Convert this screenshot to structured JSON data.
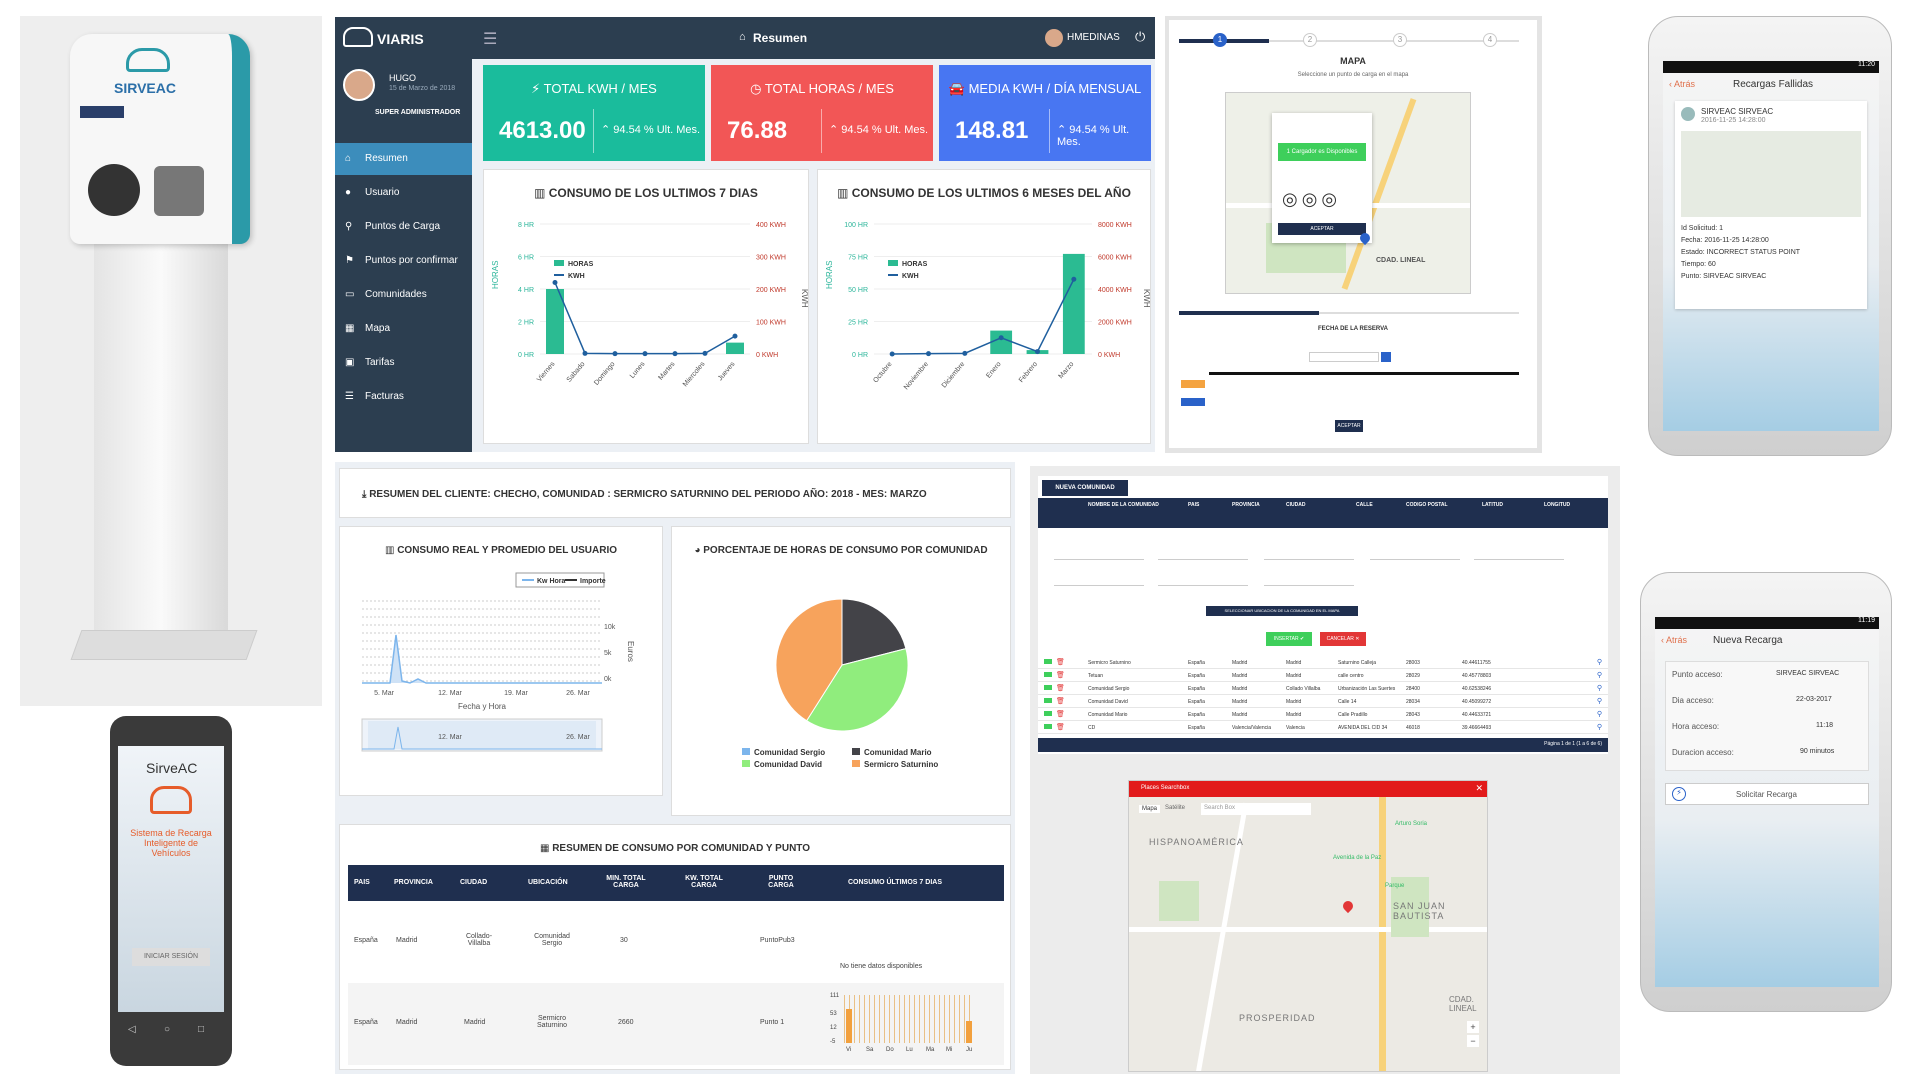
{
  "dashboard": {
    "brand": "VIARIS",
    "header_title": "Resumen",
    "user_menu": "HMEDINAS",
    "profile": {
      "name": "HUGO",
      "date": "15 de Marzo de 2018",
      "role": "SUPER ADMINISTRADOR"
    },
    "nav": [
      {
        "label": "Resumen"
      },
      {
        "label": "Usuario"
      },
      {
        "label": "Puntos de Carga"
      },
      {
        "label": "Puntos por confirmar"
      },
      {
        "label": "Comunidades"
      },
      {
        "label": "Mapa"
      },
      {
        "label": "Tarifas"
      },
      {
        "label": "Facturas"
      }
    ],
    "kpis": [
      {
        "title": "TOTAL KWH / MES",
        "value": "4613.00",
        "change": "94.54 % Ult. Mes.",
        "color": "#1abc9c"
      },
      {
        "title": "TOTAL HORAS / MES",
        "value": "76.88",
        "change": "94.54 % Ult. Mes.",
        "color": "#f25656"
      },
      {
        "title": "MEDIA KWH / DÍA MENSUAL",
        "value": "148.81",
        "change": "94.54 % Ult. Mes.",
        "color": "#4876f2"
      }
    ],
    "chart7_title": "CONSUMO DE LOS ULTIMOS 7 DIAS",
    "chart6_title": "CONSUMO DE LOS ULTIMOS 6 MESES DEL AÑO"
  },
  "chart_data": [
    {
      "type": "bar",
      "title": "CONSUMO DE LOS ULTIMOS 7 DIAS",
      "categories": [
        "Viernes",
        "Sabado",
        "Domingo",
        "Lunes",
        "Martes",
        "Miercoles",
        "Jueves"
      ],
      "series": [
        {
          "name": "HORAS",
          "values": [
            4,
            0,
            0,
            0,
            0,
            0,
            0.7
          ]
        },
        {
          "name": "KWH",
          "values": [
            220,
            2,
            1,
            1,
            1,
            2,
            55
          ]
        }
      ],
      "ylabel": "HORAS",
      "y2label": "KWH",
      "ylim": [
        0,
        8
      ],
      "y2lim": [
        0,
        400
      ],
      "yticks": [
        "0 HR",
        "2 HR",
        "4 HR",
        "6 HR",
        "8 HR"
      ],
      "y2ticks": [
        "0 KWH",
        "100 KWH",
        "200 KWH",
        "300 KWH",
        "400 KWH"
      ]
    },
    {
      "type": "bar",
      "title": "CONSUMO DE LOS ULTIMOS 6 MESES DEL AÑO",
      "categories": [
        "Octubre",
        "Noviembre",
        "Diciembre",
        "Enero",
        "Febrero",
        "Marzo"
      ],
      "series": [
        {
          "name": "HORAS",
          "values": [
            0,
            0,
            0,
            18,
            3,
            77
          ]
        },
        {
          "name": "KWH",
          "values": [
            0,
            20,
            40,
            1000,
            150,
            4600
          ]
        }
      ],
      "ylabel": "HORAS",
      "y2label": "KWH",
      "ylim": [
        0,
        100
      ],
      "y2lim": [
        0,
        8000
      ],
      "yticks": [
        "0 HR",
        "25 HR",
        "50 HR",
        "75 HR",
        "100 HR"
      ],
      "y2ticks": [
        "0 KWH",
        "2000 KWH",
        "4000 KWH",
        "6000 KWH",
        "8000 KWH"
      ]
    },
    {
      "type": "pie",
      "title": "PORCENTAJE DE HORAS DE CONSUMO POR COMUNIDAD",
      "categories": [
        "Comunidad Sergio",
        "Comunidad Mario",
        "Comunidad David",
        "Sermicro Saturnino"
      ],
      "values": [
        0,
        21,
        38,
        41
      ],
      "colors": [
        "#7cb5ec",
        "#434348",
        "#90ed7d",
        "#f7a35c"
      ]
    },
    {
      "type": "line",
      "title": "CONSUMO REAL Y PROMEDIO DEL USUARIO",
      "series": [
        {
          "name": "Kw Hora"
        },
        {
          "name": "Importe"
        }
      ],
      "xticks": [
        "5. Mar",
        "12. Mar",
        "19. Mar",
        "26. Mar"
      ],
      "yticks": [
        "10k",
        "5k",
        "0k"
      ],
      "xlabel": "Fecha y Hora",
      "ylabel": "Euros"
    }
  ],
  "mapa": {
    "title": "MAPA",
    "subtitle": "Seleccione un punto de carga en el mapa",
    "steps": [
      "1",
      "2",
      "3",
      "4"
    ],
    "info": "1 Cargador es Disponibles",
    "accept": "ACEPTAR",
    "fecha_title": "FECHA DE LA RESERVA",
    "reserve_btn": "ACEPTAR"
  },
  "summary": {
    "title": "RESUMEN DEL CLIENTE: CHECHO, COMUNIDAD : SERMICRO SATURNINO DEL PERIODO AÑO: 2018 - MES: MARZO",
    "consumo_title": "CONSUMO REAL Y PROMEDIO DEL USUARIO",
    "pie_title": "PORCENTAJE DE HORAS DE CONSUMO POR COMUNIDAD",
    "table_title": "RESUMEN DE CONSUMO POR COMUNIDAD Y PUNTO",
    "headers": [
      "PAIS",
      "PROVINCIA",
      "CIUDAD",
      "UBICACIÓN",
      "MIN. TOTAL CARGA",
      "KW. TOTAL CARGA",
      "PUNTO CARGA",
      "CONSUMO ÚLTIMOS 7 DIAS"
    ],
    "rows": [
      [
        "España",
        "Madrid",
        "Collado-Villalba",
        "Comunidad Sergio",
        "30",
        "",
        "PuntoPub3",
        "No tiene datos disponibles"
      ],
      [
        "España",
        "Madrid",
        "Madrid",
        "Sermicro Saturnino",
        "2660",
        "",
        "Punto 1",
        ""
      ]
    ],
    "spark_days": [
      "Vi",
      "Sa",
      "Do",
      "Lu",
      "Ma",
      "Mi",
      "Ju"
    ],
    "spark_ticks": [
      "111",
      "53",
      "12",
      "-5"
    ]
  },
  "comunidad": {
    "tab": "NUEVA COMUNIDAD",
    "headers": [
      "NOMBRE DE LA COMUNIDAD",
      "PAIS",
      "PROVINCIA",
      "CIUDAD",
      "CALLE",
      "CODIGO POSTAL",
      "LATITUD",
      "LONGITUD"
    ],
    "insert": "INSERTAR",
    "cancel": "CANCELAR",
    "select_map": "SELECCIONAR UBICACION DE LA COMUNIDAD EN EL MAPA",
    "rows": [
      [
        "Sermicro Saturnino",
        "España",
        "Madrid",
        "Madrid",
        "Saturnino Calleja",
        "28003",
        "40.44611755"
      ],
      [
        "Tetuan",
        "España",
        "Madrid",
        "Madrid",
        "calle centro",
        "28029",
        "40.45778803"
      ],
      [
        "Comunidad Sergio",
        "España",
        "Madrid",
        "Collado Villalba",
        "Urbanización Las Suertes",
        "28400",
        "40.62538246"
      ],
      [
        "Comunidad David",
        "España",
        "Madrid",
        "Madrid",
        "Calle 14",
        "28034",
        "40.45099272"
      ],
      [
        "Comunidad Mario",
        "España",
        "Madrid",
        "Madrid",
        "Calle Pradillo",
        "28043",
        "40.44633721"
      ],
      [
        "CD",
        "España",
        "Valencia/Valencia",
        "Valencia",
        "AVENIDA DEL CID 34",
        "46018",
        "39.46664493"
      ]
    ],
    "footer": "Página 1 de 1 (1 a 6 de 6)"
  },
  "places": {
    "title": "Places Searchbox",
    "tab_map": "Mapa",
    "tab_sat": "Satélite",
    "search": "Search Box",
    "labels": [
      "HISPANOAMÉRICA",
      "SAN JUAN BAUTISTA",
      "PROSPERIDAD",
      "CDAD. LINEAL",
      "Arturo Soria",
      "Avenida de la Paz",
      "Parque"
    ]
  },
  "phones": {
    "login": {
      "title": "SirveAC",
      "subtitle": "Sistema de Recarga Inteligente de Vehículos",
      "button": "INICIAR SESIÓN"
    },
    "fallidas": {
      "time": "11:20",
      "back": "Atrás",
      "title": "Recargas Fallidas",
      "station": "SIRVEAC SIRVEAC",
      "date": "2016-11-25 14:28:00",
      "details": [
        "Id Solicitud: 1",
        "Fecha: 2016-11-25 14:28:00",
        "Estado: INCORRECT STATUS POINT",
        "Tiempo: 60",
        "Punto: SIRVEAC SIRVEAC"
      ]
    },
    "nueva": {
      "time": "11:19",
      "back": "Atrás",
      "title": "Nueva Recarga",
      "fields": [
        {
          "label": "Punto acceso:",
          "value": "SIRVEAC SIRVEAC"
        },
        {
          "label": "Dia acceso:",
          "value": "22-03-2017"
        },
        {
          "label": "Hora acceso:",
          "value": "11:18"
        },
        {
          "label": "Duracion acceso:",
          "value": "90 minutos"
        }
      ],
      "button": "Solicitar Recarga"
    }
  },
  "charger": {
    "brand": "SIRVEAC"
  }
}
